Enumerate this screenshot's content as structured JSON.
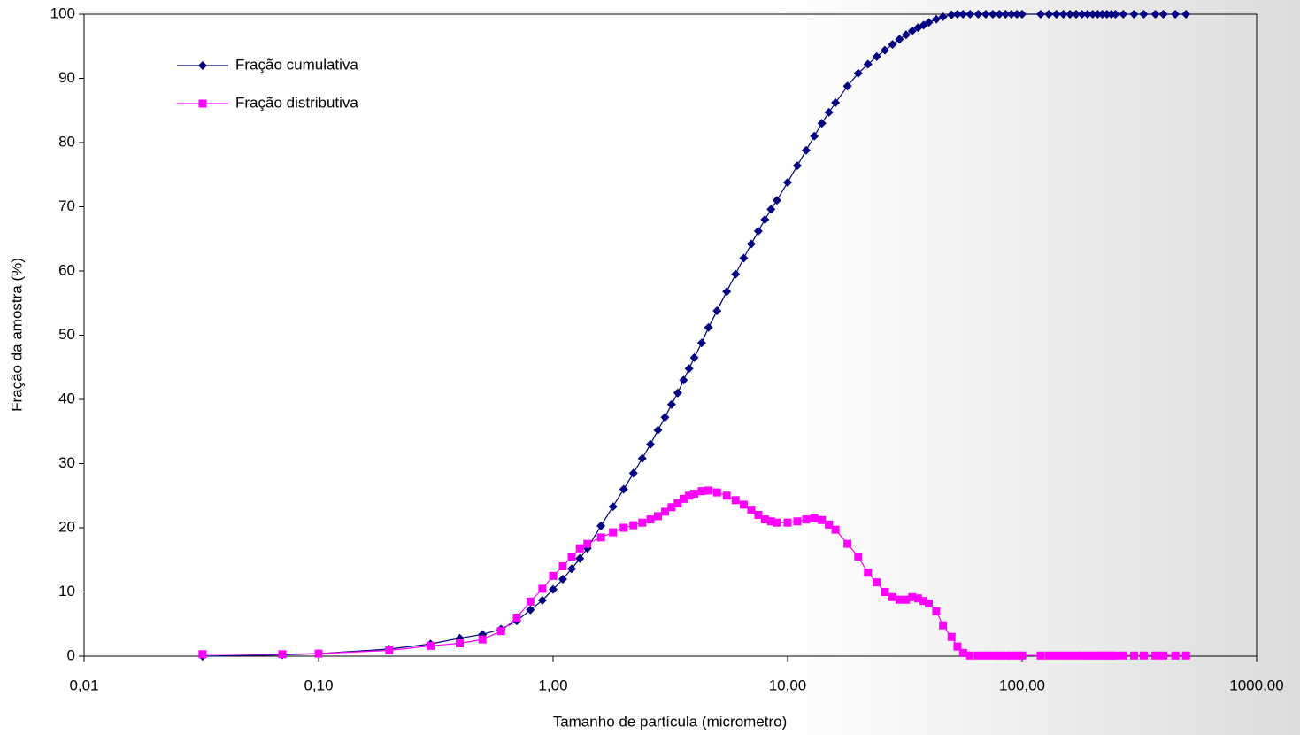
{
  "chart_data": {
    "type": "line",
    "xscale": "log",
    "xlabel": "Tamanho de partícula (micrometro)",
    "ylabel": "Fração da amostra (%)",
    "xlim": [
      0.01,
      1000
    ],
    "ylim": [
      0,
      100
    ],
    "xticks": [
      {
        "value": 0.01,
        "label": "0,01"
      },
      {
        "value": 0.1,
        "label": "0,10"
      },
      {
        "value": 1,
        "label": "1,00"
      },
      {
        "value": 10,
        "label": "10,00"
      },
      {
        "value": 100,
        "label": "100,00"
      },
      {
        "value": 1000,
        "label": "1000,00"
      }
    ],
    "yticks": [
      0,
      10,
      20,
      30,
      40,
      50,
      60,
      70,
      80,
      90,
      100
    ],
    "grid": false,
    "legend": "upper left",
    "x": [
      0.032,
      0.07,
      0.1,
      0.2,
      0.3,
      0.4,
      0.5,
      0.6,
      0.7,
      0.8,
      0.9,
      1.0,
      1.1,
      1.2,
      1.3,
      1.4,
      1.6,
      1.8,
      2.0,
      2.2,
      2.4,
      2.6,
      2.8,
      3.0,
      3.2,
      3.4,
      3.6,
      3.8,
      4.0,
      4.3,
      4.6,
      5.0,
      5.5,
      6,
      6.5,
      7,
      7.5,
      8,
      8.5,
      9,
      10,
      11,
      12,
      13,
      14,
      15,
      16,
      18,
      20,
      22,
      24,
      26,
      28,
      30,
      32,
      34,
      36,
      38,
      40,
      43,
      46,
      50,
      53,
      56,
      60,
      65,
      70,
      75,
      80,
      85,
      90,
      95,
      100,
      120,
      130,
      140,
      150,
      160,
      170,
      180,
      190,
      200,
      210,
      220,
      230,
      240,
      250,
      270,
      300,
      330,
      370,
      400,
      450,
      500
    ],
    "series": [
      {
        "name": "Fração cumulativa",
        "color": "#000080",
        "marker": "diamond",
        "values": [
          0,
          0.2,
          0.4,
          1.1,
          1.9,
          2.8,
          3.4,
          4.2,
          5.5,
          7.2,
          8.7,
          10.4,
          12,
          13.6,
          15.2,
          16.8,
          20.3,
          23.3,
          26,
          28.5,
          30.8,
          33,
          35.2,
          37.2,
          39.2,
          41,
          43,
          44.8,
          46.5,
          48.8,
          51.2,
          53.8,
          56.8,
          59.5,
          62,
          64.2,
          66.2,
          68,
          69.6,
          71,
          73.8,
          76.4,
          78.8,
          81,
          83,
          84.7,
          86.2,
          88.8,
          90.8,
          92.2,
          93.4,
          94.4,
          95.3,
          96.1,
          96.8,
          97.4,
          97.9,
          98.3,
          98.7,
          99.2,
          99.6,
          99.9,
          100,
          100,
          100,
          100,
          100,
          100,
          100,
          100,
          100,
          100,
          100,
          100,
          100,
          100,
          100,
          100,
          100,
          100,
          100,
          100,
          100,
          100,
          100,
          100,
          100,
          100,
          100,
          100,
          100,
          100,
          100,
          100
        ]
      },
      {
        "name": "Fração distributiva",
        "color": "#ff00ff",
        "marker": "square",
        "values": [
          0.3,
          0.3,
          0.4,
          0.9,
          1.6,
          2,
          2.6,
          3.9,
          6,
          8.5,
          10.5,
          12.5,
          14,
          15.5,
          16.8,
          17.5,
          18.5,
          19.3,
          20,
          20.4,
          20.8,
          21.3,
          21.8,
          22.5,
          23.2,
          23.8,
          24.5,
          25,
          25.3,
          25.7,
          25.8,
          25.5,
          25,
          24.3,
          23.6,
          22.8,
          22,
          21.3,
          21,
          20.8,
          20.8,
          21,
          21.3,
          21.5,
          21.2,
          20.5,
          19.7,
          17.5,
          15.5,
          13,
          11.5,
          10,
          9.2,
          8.8,
          8.8,
          9.2,
          9,
          8.6,
          8.2,
          7,
          4.8,
          3,
          1.5,
          0.5,
          0.1,
          0.1,
          0.1,
          0.1,
          0.1,
          0.1,
          0.1,
          0.1,
          0.1,
          0.1,
          0.1,
          0.1,
          0.1,
          0.1,
          0.1,
          0.1,
          0.1,
          0.1,
          0.1,
          0.1,
          0.1,
          0.1,
          0.1,
          0.1,
          0.1,
          0.1,
          0.1,
          0.1,
          0.1,
          0.1
        ]
      }
    ]
  }
}
